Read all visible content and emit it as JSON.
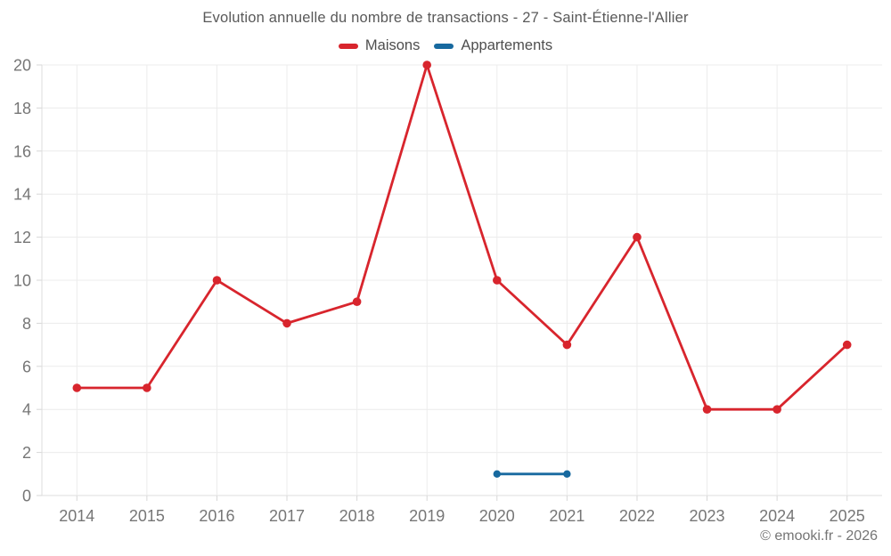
{
  "page": {
    "copyright": "© emooki.fr - 2026"
  },
  "chart_data": {
    "type": "line",
    "title": "Evolution annuelle du nombre de transactions - 27 - Saint-Étienne-l'Allier",
    "xlabel": "",
    "ylabel": "",
    "categories": [
      "2014",
      "2015",
      "2016",
      "2017",
      "2018",
      "2019",
      "2020",
      "2021",
      "2022",
      "2023",
      "2024",
      "2025"
    ],
    "series": [
      {
        "name": "Maisons",
        "color": "#d8252d",
        "values": [
          5,
          5,
          10,
          8,
          9,
          20,
          10,
          7,
          12,
          4,
          4,
          7
        ]
      },
      {
        "name": "Appartements",
        "color": "#17699f",
        "values": [
          null,
          null,
          null,
          null,
          null,
          null,
          1,
          1,
          null,
          null,
          null,
          null
        ]
      }
    ],
    "ylim": [
      0,
      20
    ],
    "ytick_step": 2,
    "grid": true,
    "legend_position": "top"
  }
}
